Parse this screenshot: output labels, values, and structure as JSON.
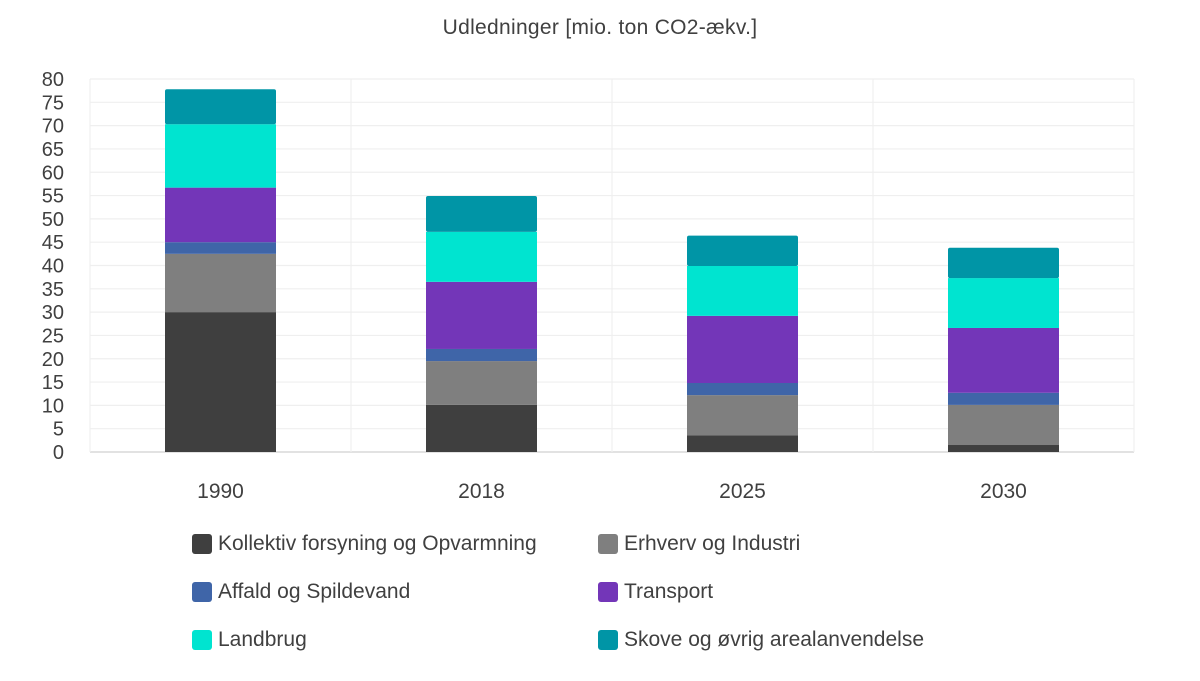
{
  "chart_data": {
    "type": "bar",
    "stacked": true,
    "title": "Udledninger [mio. ton CO2-ækv.]",
    "xlabel": "",
    "ylabel": "",
    "ylim": [
      0,
      80
    ],
    "yticks": [
      0,
      5,
      10,
      15,
      20,
      25,
      30,
      35,
      40,
      45,
      50,
      55,
      60,
      65,
      70,
      75,
      80
    ],
    "grid": true,
    "legend_position": "bottom",
    "categories": [
      "1990",
      "2018",
      "2025",
      "2030"
    ],
    "series": [
      {
        "name": "Kollektiv forsyning og Opvarmning",
        "color": "#3f3f3f",
        "values": [
          30.0,
          10.1,
          3.6,
          1.5
        ]
      },
      {
        "name": "Erhverv og Industri",
        "color": "#7f7f7f",
        "values": [
          12.5,
          9.4,
          8.6,
          8.6
        ]
      },
      {
        "name": "Affald og Spildevand",
        "color": "#3f65a8",
        "values": [
          2.5,
          2.6,
          2.6,
          2.6
        ]
      },
      {
        "name": "Transport",
        "color": "#7336b8",
        "values": [
          11.7,
          14.4,
          14.4,
          13.9
        ]
      },
      {
        "name": "Landbrug",
        "color": "#00e4d0",
        "values": [
          13.6,
          10.7,
          10.7,
          10.7
        ]
      },
      {
        "name": "Skove og øvrig arealanvendelse",
        "color": "#0095a6",
        "values": [
          7.5,
          7.7,
          6.5,
          6.5
        ]
      }
    ]
  }
}
